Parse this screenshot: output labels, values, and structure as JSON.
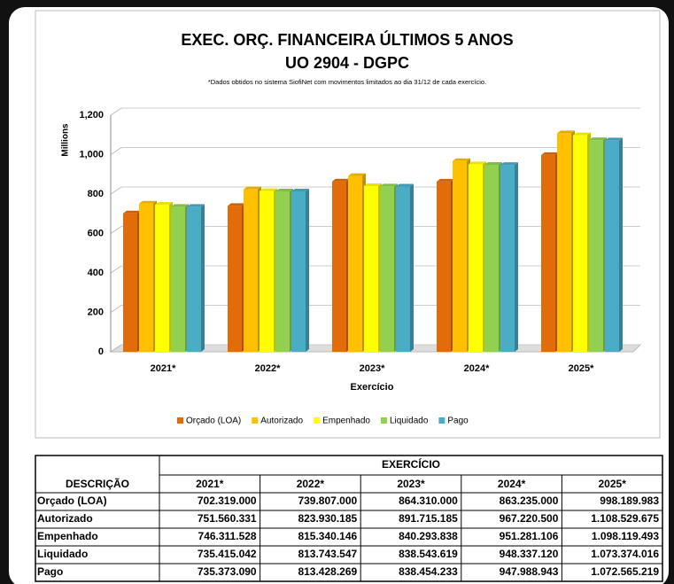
{
  "chart_data": {
    "type": "bar",
    "title": "EXEC. ORÇ. FINANCEIRA ÚLTIMOS 5 ANOS",
    "subtitle": "UO 2904 - DGPC",
    "note": "*Dados obtidos no sistema SiofiNet com movimentos limitados ao dia 31/12 de cada exercício.",
    "y_label": "Millions",
    "x_label": "Exercício",
    "categories": [
      "2021*",
      "2022*",
      "2023*",
      "2024*",
      "2025*"
    ],
    "series": [
      {
        "name": "Orçado (LOA)",
        "color": "#e36c0a",
        "values": [
          702.319,
          739.807,
          864.31,
          863.235,
          998.189983
        ]
      },
      {
        "name": "Autorizado",
        "color": "#ffc000",
        "values": [
          751.560331,
          823.930185,
          891.715185,
          967.2205,
          1108.529675
        ]
      },
      {
        "name": "Empenhado",
        "color": "#ffff00",
        "values": [
          746.311528,
          815.340146,
          840.293838,
          951.281106,
          1098.119493
        ]
      },
      {
        "name": "Liquidado",
        "color": "#92d050",
        "values": [
          735.415042,
          813.743547,
          838.543619,
          948.33712,
          1073.374016
        ]
      },
      {
        "name": "Pago",
        "color": "#4bacc6",
        "values": [
          735.37309,
          813.428269,
          838.454233,
          947.988943,
          1072.565219
        ]
      }
    ],
    "ylim": [
      0,
      1200
    ],
    "yticks": [
      0,
      200,
      400,
      600,
      800,
      {
        "value": 1000,
        "label": "1,000"
      },
      {
        "value": 1200,
        "label": "1,200"
      }
    ],
    "legend": "bottom"
  },
  "table": {
    "group_header": "EXERCÍCIO",
    "header": [
      "DESCRIÇÃO",
      "2021*",
      "2022*",
      "2023*",
      "2024*",
      "2025*"
    ],
    "rows": [
      [
        "Orçado (LOA)",
        "702.319.000",
        "739.807.000",
        "864.310.000",
        "863.235.000",
        "998.189.983"
      ],
      [
        "Autorizado",
        "751.560.331",
        "823.930.185",
        "891.715.185",
        "967.220.500",
        "1.108.529.675"
      ],
      [
        "Empenhado",
        "746.311.528",
        "815.340.146",
        "840.293.838",
        "951.281.106",
        "1.098.119.493"
      ],
      [
        "Liquidado",
        "735.415.042",
        "813.743.547",
        "838.543.619",
        "948.337.120",
        "1.073.374.016"
      ],
      [
        "Pago",
        "735.373.090",
        "813.428.269",
        "838.454.233",
        "947.988.943",
        "1.072.565.219"
      ]
    ]
  }
}
